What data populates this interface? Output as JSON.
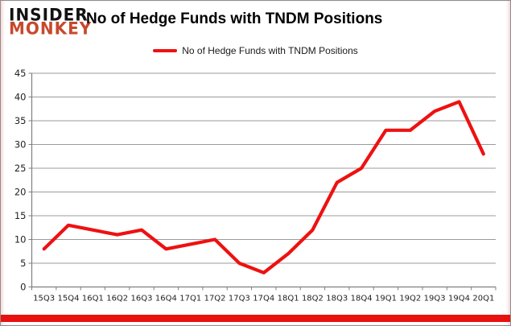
{
  "logo": {
    "line1": "INSIDER",
    "line2": "MONKEY"
  },
  "header": {
    "title": "No of Hedge Funds with TNDM Positions"
  },
  "legend": {
    "label": "No of Hedge Funds with TNDM Positions"
  },
  "colors": {
    "series_red": "#ee1111",
    "logo_orange": "#c7492d",
    "gridline": "#9b9b9b",
    "axis": "#7f7f7f",
    "tick_label": "#1f1f1f",
    "accent_bar": "#e91010"
  },
  "chart_data": {
    "type": "line",
    "title": "No of Hedge Funds with TNDM Positions",
    "categories": [
      "15Q3",
      "15Q4",
      "16Q1",
      "16Q2",
      "16Q3",
      "16Q4",
      "17Q1",
      "17Q2",
      "17Q3",
      "17Q4",
      "18Q1",
      "18Q2",
      "18Q3",
      "18Q4",
      "19Q1",
      "19Q2",
      "19Q3",
      "19Q4",
      "20Q1"
    ],
    "series": [
      {
        "name": "No of Hedge Funds with TNDM Positions",
        "color": "#ee1111",
        "values": [
          8,
          13,
          12,
          11,
          12,
          8,
          9,
          10,
          5,
          3,
          7,
          12,
          22,
          25,
          33,
          33,
          37,
          39,
          28
        ]
      }
    ],
    "xlabel": "",
    "ylabel": "",
    "ylim": [
      0,
      45
    ],
    "y_ticks": [
      0,
      5,
      10,
      15,
      20,
      25,
      30,
      35,
      40,
      45
    ],
    "grid": true,
    "legend_position": "top-center"
  }
}
